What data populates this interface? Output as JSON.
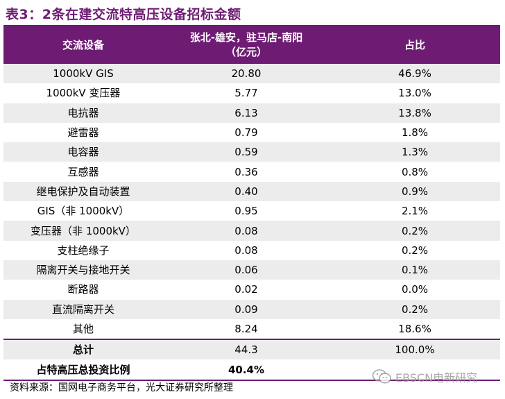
{
  "title": "表3：2条在建交流特高压设备招标金额",
  "table": {
    "headers": {
      "col1": "交流设备",
      "col2_line1": "张北-雄安，驻马店-南阳",
      "col2_line2": "（亿元）",
      "col3": "占比"
    },
    "rows": [
      {
        "name": "1000kV GIS",
        "amount": "20.80",
        "share": "46.9%"
      },
      {
        "name": "1000kV 变压器",
        "amount": "5.77",
        "share": "13.0%"
      },
      {
        "name": "电抗器",
        "amount": "6.13",
        "share": "13.8%"
      },
      {
        "name": "避雷器",
        "amount": "0.79",
        "share": "1.8%"
      },
      {
        "name": "电容器",
        "amount": "0.59",
        "share": "1.3%"
      },
      {
        "name": "互感器",
        "amount": "0.36",
        "share": "0.8%"
      },
      {
        "name": "继电保护及自动装置",
        "amount": "0.40",
        "share": "0.9%"
      },
      {
        "name": "GIS（非 1000kV）",
        "amount": "0.95",
        "share": "2.1%"
      },
      {
        "name": "变压器（非 1000kV）",
        "amount": "0.08",
        "share": "0.2%"
      },
      {
        "name": "支柱绝缘子",
        "amount": "0.08",
        "share": "0.2%"
      },
      {
        "name": "隔离开关与接地开关",
        "amount": "0.06",
        "share": "0.1%"
      },
      {
        "name": "断路器",
        "amount": "0.02",
        "share": "0.0%"
      },
      {
        "name": "直流隔离开关",
        "amount": "0.09",
        "share": "0.2%"
      },
      {
        "name": "其他",
        "amount": "8.24",
        "share": "18.6%"
      }
    ],
    "total": {
      "name": "总计",
      "amount": "44.3",
      "share": "100.0%"
    },
    "ratio": {
      "name": "占特高压总投资比例",
      "amount": "40.4%",
      "share": ""
    }
  },
  "source": "资料来源：国网电子商务平台，光大证券研究所整理",
  "watermark": {
    "text": "EBSCN电新研究",
    "icon": "wechat-icon"
  }
}
